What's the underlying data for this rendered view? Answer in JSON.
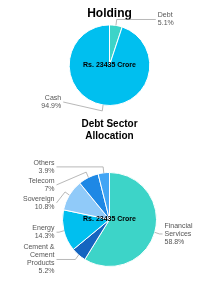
{
  "chart_data": [
    {
      "type": "pie",
      "title": "Holding",
      "categories": [
        "Debt",
        "Cash"
      ],
      "values": [
        5.1,
        94.9
      ],
      "value_labels": [
        "5.1%",
        "94.9%"
      ],
      "colors": [
        "#3DD4C8",
        "#00BFEF"
      ],
      "annotations": [
        "Rs. 23435 Crore"
      ],
      "data_labels": true
    },
    {
      "type": "pie",
      "title": "Debt Sector\nAllocation",
      "categories": [
        "Financial Services",
        "Cement & Cement Products",
        "Energy",
        "Sovereign",
        "Telecom",
        "Others"
      ],
      "values": [
        58.8,
        5.2,
        14.3,
        10.8,
        7,
        3.9
      ],
      "value_labels": [
        "58.8%",
        "5.2%",
        "14.3%",
        "10.8%",
        "7%",
        "3.9%"
      ],
      "colors": [
        "#3DD4C8",
        "#1565C0",
        "#00BFEF",
        "#90CAF9",
        "#1E88E5",
        "#42A5F5"
      ],
      "annotations": [
        "Rs. 23435 Crore"
      ],
      "data_labels": true
    }
  ]
}
